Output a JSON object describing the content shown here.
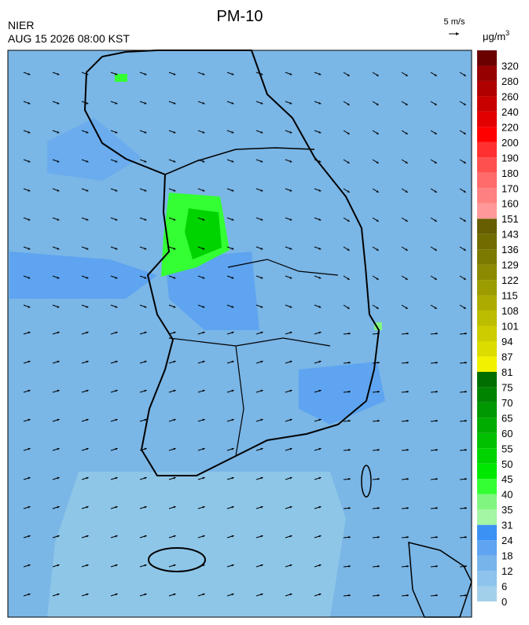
{
  "header": {
    "title": "PM-10",
    "agency": "NIER",
    "datetime": "AUG 15 2026 08:00 KST",
    "wind_scale": "5 m/s",
    "unit": "μg/m",
    "unit_superscript": "3"
  },
  "legend": {
    "labels": [
      0,
      6,
      12,
      18,
      24,
      31,
      35,
      40,
      45,
      50,
      55,
      60,
      65,
      70,
      75,
      81,
      87,
      94,
      101,
      108,
      115,
      122,
      129,
      136,
      143,
      151,
      160,
      170,
      180,
      190,
      200,
      220,
      240,
      260,
      280,
      320
    ],
    "colors": [
      "#a2d0ea",
      "#8dc3ec",
      "#78b4ec",
      "#5ea4f0",
      "#3c92f4",
      "#a4f5a4",
      "#80f580",
      "#33ff33",
      "#00e800",
      "#00d400",
      "#00c000",
      "#00ac00",
      "#009800",
      "#008400",
      "#006e00",
      "#f2f200",
      "#dcdc00",
      "#cccc00",
      "#bcbc00",
      "#acac00",
      "#9c9c00",
      "#8c8a00",
      "#7c7a00",
      "#726c00",
      "#665e00",
      "#ff9898",
      "#ff8080",
      "#ff6a6a",
      "#ff5050",
      "#ff3030",
      "#ff0000",
      "#e20000",
      "#c80000",
      "#b00000",
      "#960000",
      "#6a0000"
    ]
  }
}
